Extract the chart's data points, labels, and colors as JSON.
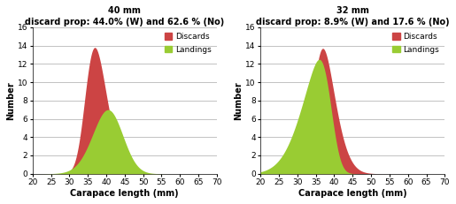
{
  "title1": "40 mm",
  "subtitle1": "discard prop: 44.0% (W) and 62.6 % (No)",
  "title2": "32 mm",
  "subtitle2": "discard prop: 8.9% (W) and 17.6 % (No)",
  "xlabel": "Carapace length (mm)",
  "ylabel": "Number",
  "xlim": [
    20,
    70
  ],
  "ylim": [
    0,
    16
  ],
  "yticks": [
    0,
    2,
    4,
    6,
    8,
    10,
    12,
    14,
    16
  ],
  "xticks": [
    20,
    25,
    30,
    35,
    40,
    45,
    50,
    55,
    60,
    65,
    70
  ],
  "discard_color": "#CC4444",
  "landing_color": "#99CC33",
  "bg_color": "#ffffff",
  "grid_color": "#aaaaaa",
  "discard1_peak": 13.8,
  "discard1_mean": 34.5,
  "discard1_std": 4.5,
  "discard1_skew": 2.0,
  "landing1_peak": 7.0,
  "landing1_mean": 43.0,
  "landing1_std": 5.0,
  "landing1_skew": -1.0,
  "discard2_peak": 13.7,
  "discard2_mean": 34.5,
  "discard2_std": 4.5,
  "discard2_skew": 2.0,
  "landing2_peak": 12.5,
  "landing2_mean": 39.0,
  "landing2_std": 6.5,
  "landing2_skew": -3.0
}
